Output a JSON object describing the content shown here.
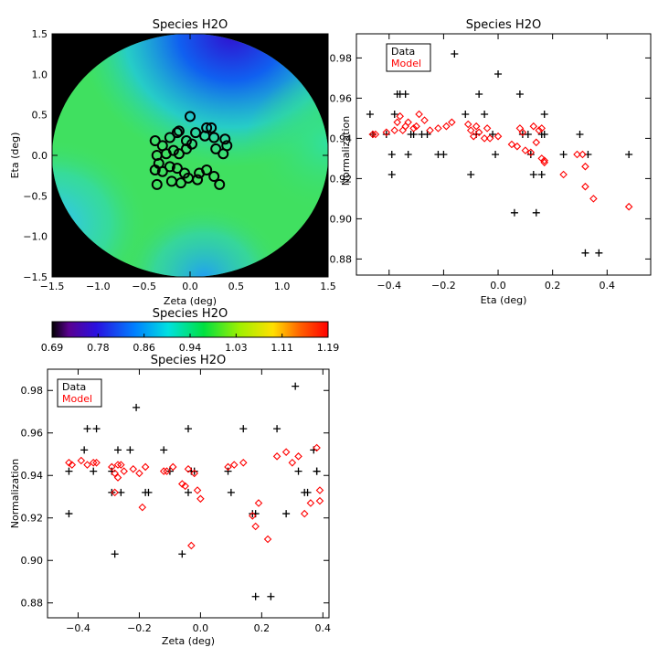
{
  "chart_data": [
    {
      "id": "map",
      "type": "heatmap",
      "title": "Species H2O",
      "xlabel": "Zeta (deg)",
      "ylabel": "Eta (deg)",
      "xlim": [
        -1.5,
        1.5
      ],
      "ylim": [
        -1.5,
        1.5
      ],
      "xticks": [
        -1.5,
        -1.0,
        -0.5,
        0.0,
        0.5,
        1.0,
        1.5
      ],
      "yticks": [
        -1.5,
        -1.0,
        -0.5,
        0.0,
        0.5,
        1.0,
        1.5
      ],
      "field_radius_deg": 1.5,
      "background": "#000000",
      "marker": "circle",
      "marker_color": "#000000",
      "points": [
        [
          -0.14,
          0.28
        ],
        [
          0.0,
          0.48
        ],
        [
          -0.38,
          0.18
        ],
        [
          -0.3,
          0.12
        ],
        [
          -0.22,
          0.22
        ],
        [
          -0.12,
          0.3
        ],
        [
          -0.04,
          0.18
        ],
        [
          0.06,
          0.28
        ],
        [
          0.18,
          0.34
        ],
        [
          0.23,
          0.34
        ],
        [
          0.16,
          0.24
        ],
        [
          0.26,
          0.22
        ],
        [
          0.38,
          0.2
        ],
        [
          0.4,
          0.12
        ],
        [
          -0.36,
          0.0
        ],
        [
          -0.34,
          -0.1
        ],
        [
          -0.26,
          0.02
        ],
        [
          -0.18,
          0.06
        ],
        [
          -0.12,
          0.02
        ],
        [
          -0.04,
          0.08
        ],
        [
          0.02,
          0.14
        ],
        [
          0.36,
          0.02
        ],
        [
          -0.38,
          -0.18
        ],
        [
          -0.3,
          -0.2
        ],
        [
          -0.22,
          -0.14
        ],
        [
          -0.14,
          -0.16
        ],
        [
          -0.06,
          -0.22
        ],
        [
          -0.02,
          -0.28
        ],
        [
          -0.1,
          -0.34
        ],
        [
          -0.2,
          -0.32
        ],
        [
          -0.36,
          -0.36
        ],
        [
          0.1,
          -0.22
        ],
        [
          0.18,
          -0.18
        ],
        [
          0.26,
          -0.26
        ],
        [
          0.32,
          -0.36
        ],
        [
          0.08,
          -0.3
        ],
        [
          0.28,
          0.08
        ]
      ]
    },
    {
      "id": "eta",
      "type": "scatter",
      "title": "Species H2O",
      "xlabel": "Eta (deg)",
      "ylabel": "Normalization",
      "xlim": [
        -0.52,
        0.56
      ],
      "ylim": [
        0.872,
        0.992
      ],
      "xticks": [
        -0.4,
        -0.2,
        0.0,
        0.2,
        0.4
      ],
      "xtick_labels": [
        "-0.4",
        "-0.2",
        "0.0",
        "0.2",
        "0.4"
      ],
      "yticks": [
        0.88,
        0.9,
        0.92,
        0.94,
        0.96,
        0.98
      ],
      "ytick_labels": [
        "0.88",
        "0.90",
        "0.92",
        "0.94",
        "0.96",
        "0.98"
      ],
      "legend": {
        "entries": [
          "Data",
          "Model"
        ],
        "position": "top-left"
      },
      "series": [
        {
          "name": "Data",
          "marker": "plus",
          "color": "#000000",
          "points": [
            [
              -0.47,
              0.952
            ],
            [
              -0.46,
              0.942
            ],
            [
              -0.41,
              0.942
            ],
            [
              -0.38,
              0.952
            ],
            [
              -0.37,
              0.962
            ],
            [
              -0.36,
              0.962
            ],
            [
              -0.34,
              0.962
            ],
            [
              -0.39,
              0.932
            ],
            [
              -0.33,
              0.932
            ],
            [
              -0.39,
              0.922
            ],
            [
              -0.32,
              0.942
            ],
            [
              -0.31,
              0.942
            ],
            [
              -0.28,
              0.942
            ],
            [
              -0.26,
              0.942
            ],
            [
              -0.22,
              0.932
            ],
            [
              -0.2,
              0.932
            ],
            [
              -0.12,
              0.952
            ],
            [
              -0.16,
              0.982
            ],
            [
              -0.1,
              0.922
            ],
            [
              -0.08,
              0.942
            ],
            [
              -0.07,
              0.962
            ],
            [
              -0.05,
              0.952
            ],
            [
              -0.02,
              0.942
            ],
            [
              -0.01,
              0.932
            ],
            [
              0.0,
              0.972
            ],
            [
              0.06,
              0.903
            ],
            [
              0.08,
              0.962
            ],
            [
              0.09,
              0.942
            ],
            [
              0.11,
              0.942
            ],
            [
              0.12,
              0.932
            ],
            [
              0.13,
              0.922
            ],
            [
              0.14,
              0.903
            ],
            [
              0.16,
              0.942
            ],
            [
              0.17,
              0.942
            ],
            [
              0.16,
              0.922
            ],
            [
              0.17,
              0.952
            ],
            [
              0.24,
              0.932
            ],
            [
              0.3,
              0.942
            ],
            [
              0.33,
              0.932
            ],
            [
              0.32,
              0.883
            ],
            [
              0.37,
              0.883
            ],
            [
              0.48,
              0.932
            ]
          ]
        },
        {
          "name": "Model",
          "marker": "diamond",
          "color": "#ff0000",
          "points": [
            [
              -0.46,
              0.942
            ],
            [
              -0.45,
              0.942
            ],
            [
              -0.41,
              0.943
            ],
            [
              -0.38,
              0.944
            ],
            [
              -0.37,
              0.948
            ],
            [
              -0.36,
              0.951
            ],
            [
              -0.35,
              0.944
            ],
            [
              -0.34,
              0.946
            ],
            [
              -0.33,
              0.948
            ],
            [
              -0.31,
              0.945
            ],
            [
              -0.3,
              0.946
            ],
            [
              -0.29,
              0.952
            ],
            [
              -0.27,
              0.949
            ],
            [
              -0.25,
              0.944
            ],
            [
              -0.22,
              0.945
            ],
            [
              -0.19,
              0.946
            ],
            [
              -0.17,
              0.948
            ],
            [
              -0.11,
              0.947
            ],
            [
              -0.1,
              0.944
            ],
            [
              -0.09,
              0.941
            ],
            [
              -0.08,
              0.946
            ],
            [
              -0.07,
              0.943
            ],
            [
              -0.05,
              0.94
            ],
            [
              -0.04,
              0.945
            ],
            [
              -0.03,
              0.94
            ],
            [
              0.0,
              0.941
            ],
            [
              0.05,
              0.937
            ],
            [
              0.07,
              0.936
            ],
            [
              0.08,
              0.945
            ],
            [
              0.09,
              0.943
            ],
            [
              0.1,
              0.934
            ],
            [
              0.12,
              0.933
            ],
            [
              0.13,
              0.946
            ],
            [
              0.14,
              0.938
            ],
            [
              0.15,
              0.944
            ],
            [
              0.16,
              0.93
            ],
            [
              0.17,
              0.929
            ],
            [
              0.17,
              0.928
            ],
            [
              0.16,
              0.945
            ],
            [
              0.24,
              0.922
            ],
            [
              0.29,
              0.932
            ],
            [
              0.31,
              0.932
            ],
            [
              0.32,
              0.926
            ],
            [
              0.32,
              0.916
            ],
            [
              0.35,
              0.91
            ],
            [
              0.48,
              0.906
            ]
          ]
        }
      ]
    },
    {
      "id": "zeta",
      "type": "scatter",
      "title": "Species H2O",
      "xlabel": "Zeta (deg)",
      "ylabel": "Normalization",
      "xlim": [
        -0.5,
        0.42
      ],
      "ylim": [
        0.873,
        0.99
      ],
      "xticks": [
        -0.4,
        -0.2,
        0.0,
        0.2,
        0.4
      ],
      "xtick_labels": [
        "-0.4",
        "-0.2",
        "0.0",
        "0.2",
        "0.4"
      ],
      "yticks": [
        0.88,
        0.9,
        0.92,
        0.94,
        0.96,
        0.98
      ],
      "ytick_labels": [
        "0.88",
        "0.90",
        "0.92",
        "0.94",
        "0.96",
        "0.98"
      ],
      "legend": {
        "entries": [
          "Data",
          "Model"
        ],
        "position": "top-left"
      },
      "series": [
        {
          "name": "Data",
          "marker": "plus",
          "color": "#000000",
          "points": [
            [
              -0.43,
              0.942
            ],
            [
              -0.43,
              0.922
            ],
            [
              -0.38,
              0.952
            ],
            [
              -0.37,
              0.962
            ],
            [
              -0.34,
              0.962
            ],
            [
              -0.35,
              0.942
            ],
            [
              -0.29,
              0.932
            ],
            [
              -0.29,
              0.942
            ],
            [
              -0.28,
              0.903
            ],
            [
              -0.27,
              0.952
            ],
            [
              -0.26,
              0.932
            ],
            [
              -0.23,
              0.952
            ],
            [
              -0.21,
              0.972
            ],
            [
              -0.18,
              0.932
            ],
            [
              -0.17,
              0.932
            ],
            [
              -0.12,
              0.952
            ],
            [
              -0.1,
              0.942
            ],
            [
              -0.06,
              0.903
            ],
            [
              -0.04,
              0.962
            ],
            [
              -0.04,
              0.932
            ],
            [
              -0.03,
              0.942
            ],
            [
              -0.02,
              0.942
            ],
            [
              0.09,
              0.942
            ],
            [
              0.1,
              0.932
            ],
            [
              0.14,
              0.962
            ],
            [
              0.17,
              0.922
            ],
            [
              0.18,
              0.883
            ],
            [
              0.18,
              0.922
            ],
            [
              0.23,
              0.883
            ],
            [
              0.25,
              0.962
            ],
            [
              0.28,
              0.922
            ],
            [
              0.31,
              0.982
            ],
            [
              0.32,
              0.942
            ],
            [
              0.34,
              0.932
            ],
            [
              0.35,
              0.932
            ],
            [
              0.37,
              0.952
            ],
            [
              0.38,
              0.942
            ],
            [
              0.38,
              0.942
            ]
          ]
        },
        {
          "name": "Model",
          "marker": "diamond",
          "color": "#ff0000",
          "points": [
            [
              -0.43,
              0.946
            ],
            [
              -0.42,
              0.945
            ],
            [
              -0.39,
              0.947
            ],
            [
              -0.37,
              0.945
            ],
            [
              -0.35,
              0.946
            ],
            [
              -0.34,
              0.946
            ],
            [
              -0.29,
              0.944
            ],
            [
              -0.28,
              0.941
            ],
            [
              -0.28,
              0.932
            ],
            [
              -0.27,
              0.939
            ],
            [
              -0.27,
              0.945
            ],
            [
              -0.26,
              0.945
            ],
            [
              -0.25,
              0.942
            ],
            [
              -0.22,
              0.943
            ],
            [
              -0.2,
              0.941
            ],
            [
              -0.19,
              0.925
            ],
            [
              -0.18,
              0.944
            ],
            [
              -0.12,
              0.942
            ],
            [
              -0.11,
              0.942
            ],
            [
              -0.09,
              0.944
            ],
            [
              -0.06,
              0.936
            ],
            [
              -0.05,
              0.935
            ],
            [
              -0.04,
              0.943
            ],
            [
              -0.03,
              0.907
            ],
            [
              -0.02,
              0.941
            ],
            [
              -0.01,
              0.933
            ],
            [
              0.0,
              0.929
            ],
            [
              0.09,
              0.944
            ],
            [
              0.11,
              0.945
            ],
            [
              0.14,
              0.946
            ],
            [
              0.17,
              0.921
            ],
            [
              0.18,
              0.916
            ],
            [
              0.19,
              0.927
            ],
            [
              0.22,
              0.91
            ],
            [
              0.25,
              0.949
            ],
            [
              0.28,
              0.951
            ],
            [
              0.3,
              0.946
            ],
            [
              0.32,
              0.949
            ],
            [
              0.34,
              0.922
            ],
            [
              0.36,
              0.927
            ],
            [
              0.38,
              0.953
            ],
            [
              0.39,
              0.933
            ],
            [
              0.39,
              0.928
            ]
          ]
        }
      ]
    }
  ],
  "colorbar": {
    "title": "Species H2O",
    "tick_labels": [
      "0.69",
      "0.78",
      "0.86",
      "0.94",
      "1.03",
      "1.11",
      "1.19"
    ],
    "range": [
      0.69,
      1.19
    ]
  }
}
